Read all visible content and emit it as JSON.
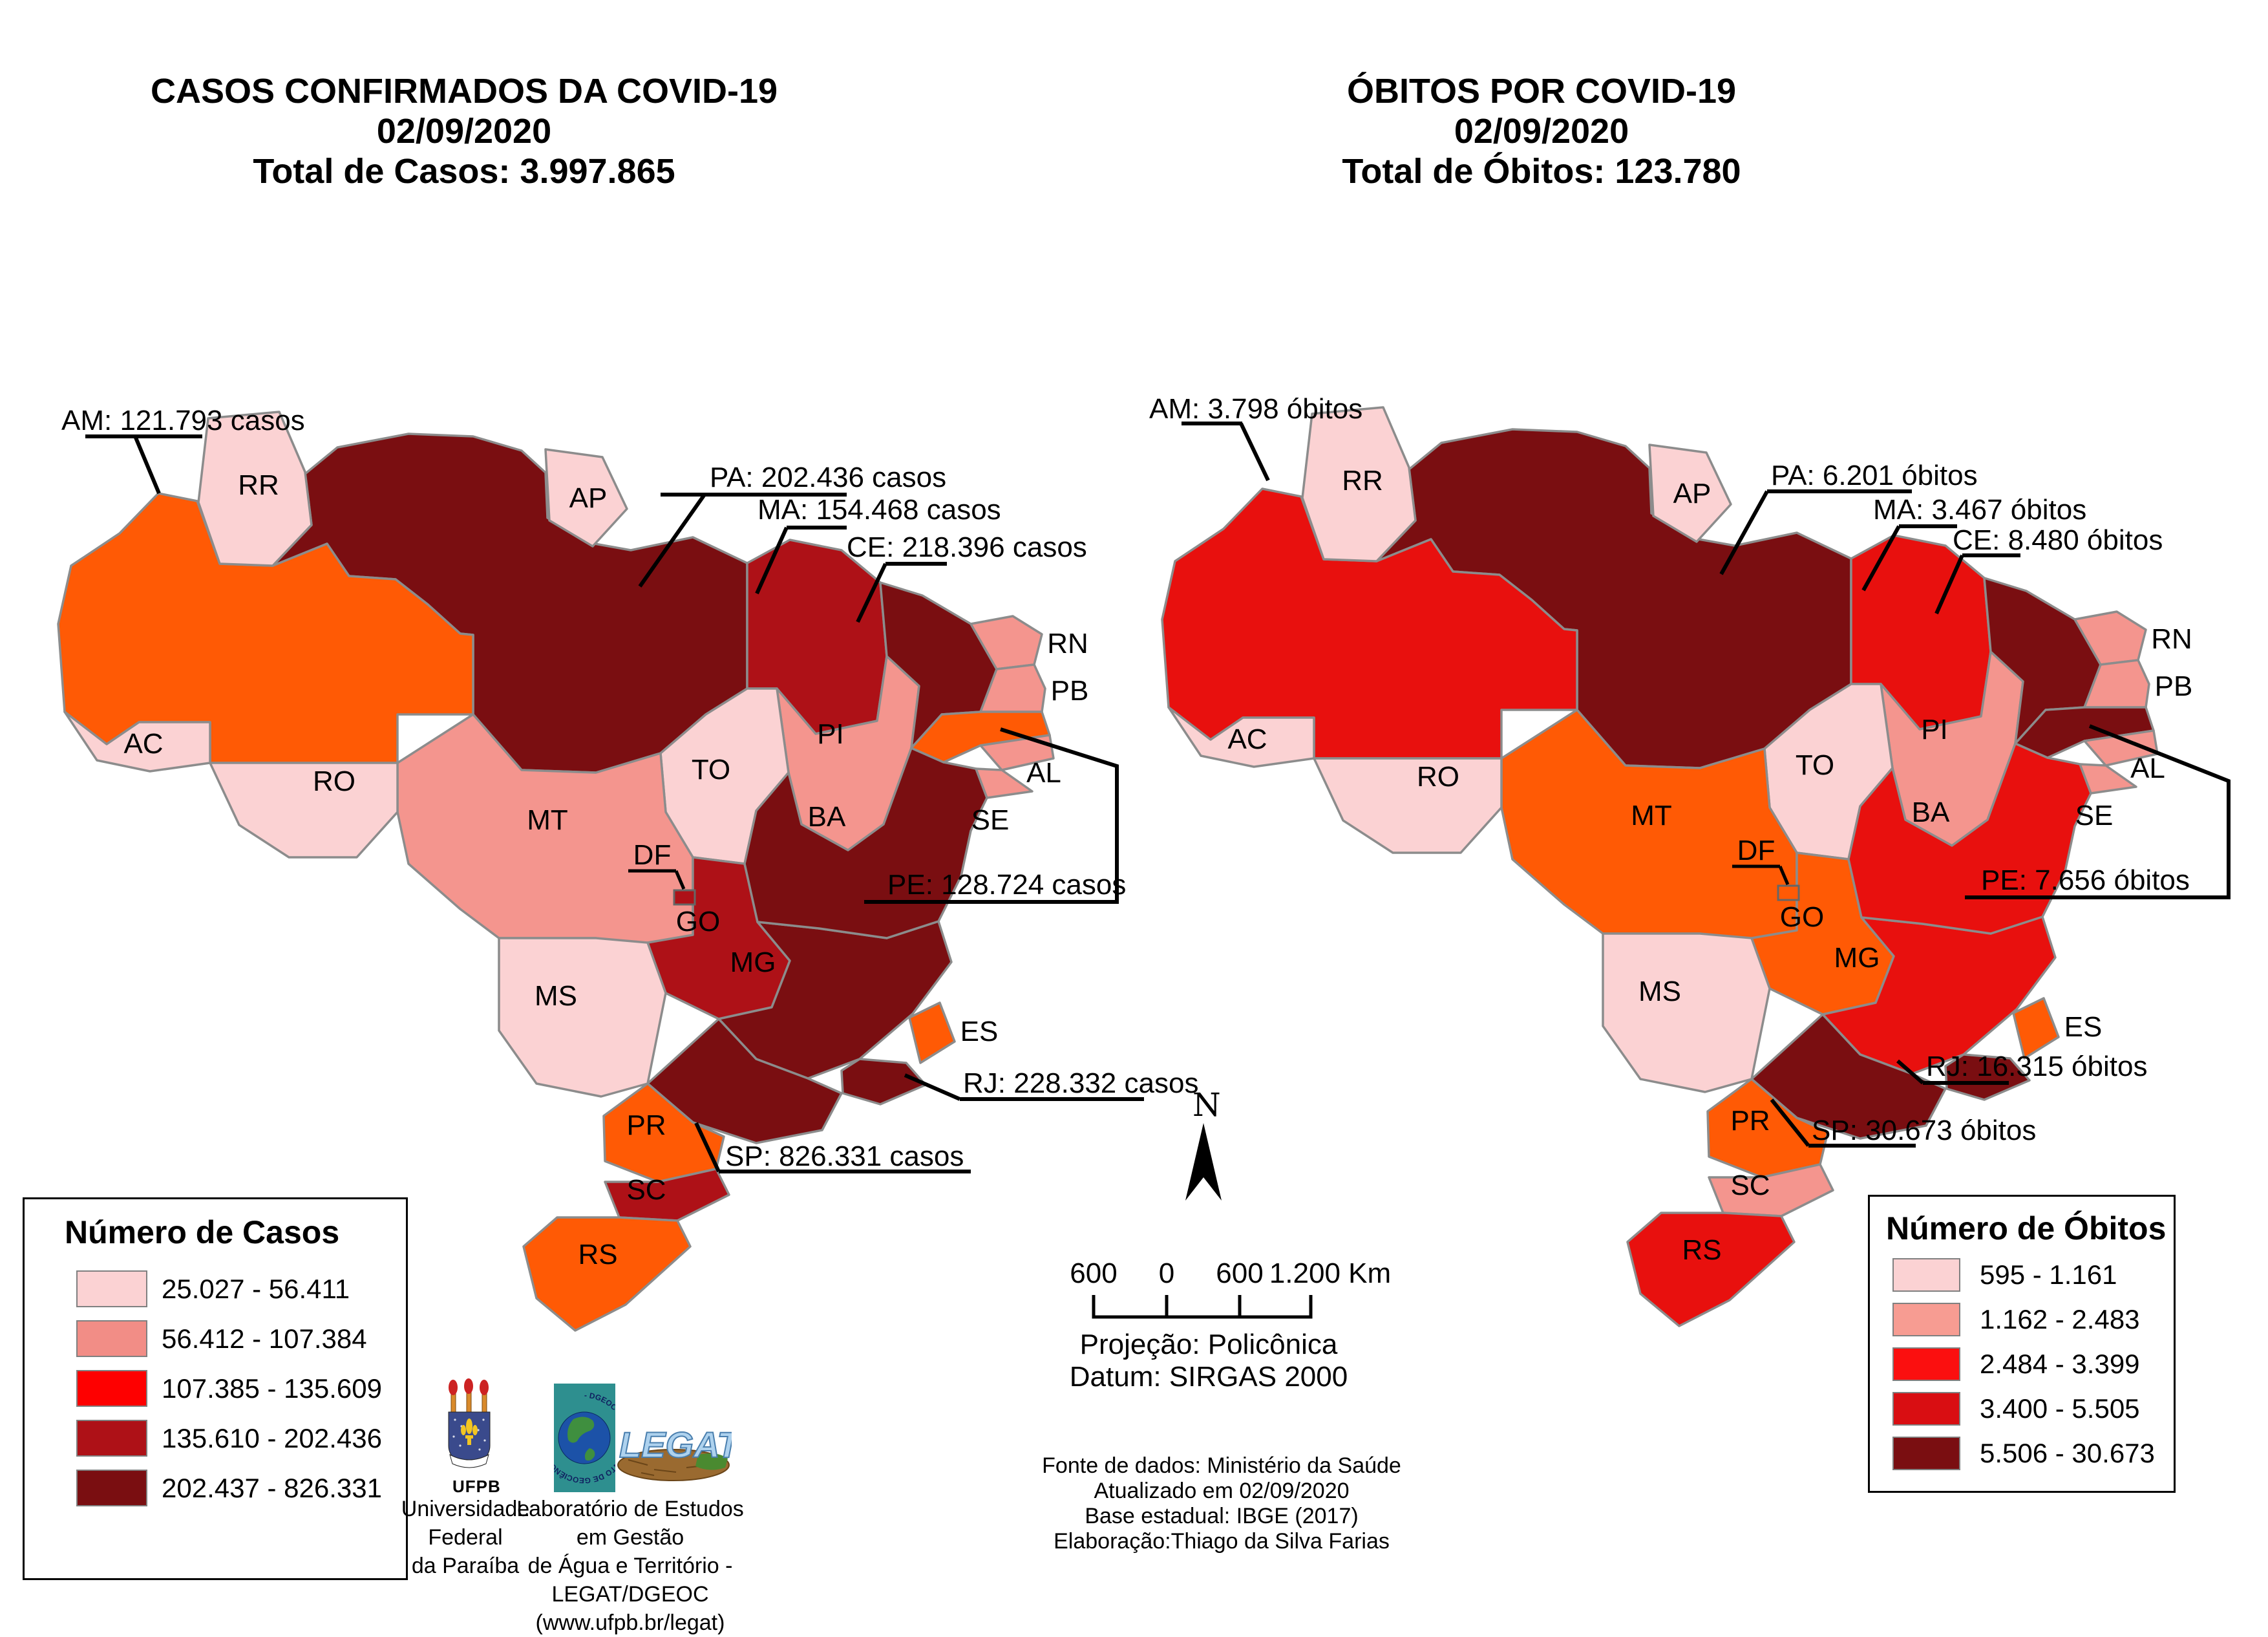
{
  "maps": [
    {
      "id": "casos",
      "title": [
        "CASOS CONFIRMADOS DA COVID-19",
        "02/09/2020",
        "Total de Casos: 3.997.865"
      ],
      "legend": {
        "title": "Número de Casos",
        "classes": [
          {
            "label": "25.027 - 56.411",
            "color": "#FBD2D3"
          },
          {
            "label": "56.412 - 107.384",
            "color": "#F28D86"
          },
          {
            "label": "107.385 - 135.609",
            "color": "#FE0000"
          },
          {
            "label": "135.610 - 202.436",
            "color": "#AE1117"
          },
          {
            "label": "202.437 - 826.331",
            "color": "#7A0E11"
          }
        ]
      },
      "map_colors": {
        "c1": "#FBD2D3",
        "c2": "#F4958E",
        "c3": "#FF5A05",
        "c4": "#AE1117",
        "c5": "#7A0E11"
      },
      "state_classes": {
        "AC": "c1",
        "RO": "c1",
        "RR": "c1",
        "AP": "c1",
        "TO": "c1",
        "MS": "c1",
        "MT": "c2",
        "PI": "c2",
        "RN": "c2",
        "PB": "c2",
        "AL": "c2",
        "SE": "c2",
        "AM": "c3",
        "PE": "c3",
        "ES": "c3",
        "PR": "c3",
        "RS": "c3",
        "MA": "c4",
        "GO": "c4",
        "DF": "c4",
        "SC": "c4",
        "PA": "c5",
        "CE": "c5",
        "BA": "c5",
        "MG": "c5",
        "SP": "c5",
        "RJ": "c5"
      },
      "callouts": [
        {
          "state": "AM",
          "text": "AM: 121.793 casos"
        },
        {
          "state": "PA",
          "text": "PA: 202.436 casos"
        },
        {
          "state": "MA",
          "text": "MA: 154.468 casos"
        },
        {
          "state": "CE",
          "text": "CE: 218.396 casos"
        },
        {
          "state": "PE",
          "text": "PE: 128.724 casos"
        },
        {
          "state": "RJ",
          "text": "RJ: 228.332 casos"
        },
        {
          "state": "SP",
          "text": "SP: 826.331 casos"
        }
      ],
      "state_labels": [
        "RR",
        "AP",
        "AC",
        "RO",
        "MT",
        "TO",
        "PI",
        "RN",
        "PB",
        "AL",
        "SE",
        "BA",
        "GO",
        "DF",
        "MG",
        "ES",
        "MS",
        "PR",
        "SC",
        "RS"
      ]
    },
    {
      "id": "obitos",
      "title": [
        "ÓBITOS POR COVID-19",
        "02/09/2020",
        "Total de Óbitos: 123.780"
      ],
      "legend": {
        "title": "Número de Óbitos",
        "classes": [
          {
            "label": "595 - 1.161",
            "color": "#FBD2D3"
          },
          {
            "label": "1.162 - 2.483",
            "color": "#F79C92"
          },
          {
            "label": "2.484 - 3.399",
            "color": "#FB0F0F"
          },
          {
            "label": "3.400 - 5.505",
            "color": "#D90E12"
          },
          {
            "label": "5.506 - 30.673",
            "color": "#7A0E11"
          }
        ]
      },
      "map_colors": {
        "c1": "#FBD2D3",
        "c2": "#F4958E",
        "c3": "#FF5A05",
        "c4": "#E8100E",
        "c5": "#7A0E11"
      },
      "state_classes": {
        "AC": "c1",
        "RO": "c1",
        "RR": "c1",
        "AP": "c1",
        "TO": "c1",
        "MS": "c1",
        "PI": "c2",
        "RN": "c2",
        "PB": "c2",
        "AL": "c2",
        "SE": "c2",
        "SC": "c2",
        "MT": "c3",
        "GO": "c3",
        "DF": "c3",
        "ES": "c3",
        "PR": "c3",
        "AM": "c4",
        "MA": "c4",
        "BA": "c4",
        "MG": "c4",
        "RS": "c4",
        "PA": "c5",
        "CE": "c5",
        "PE": "c5",
        "RJ": "c5",
        "SP": "c5"
      },
      "callouts": [
        {
          "state": "AM",
          "text": "AM: 3.798 óbitos"
        },
        {
          "state": "PA",
          "text": "PA: 6.201 óbitos"
        },
        {
          "state": "MA",
          "text": "MA: 3.467 óbitos"
        },
        {
          "state": "CE",
          "text": "CE: 8.480 óbitos"
        },
        {
          "state": "PE",
          "text": "PE: 7.656 óbitos"
        },
        {
          "state": "RJ",
          "text": "RJ: 16.315 óbitos"
        },
        {
          "state": "SP",
          "text": "SP: 30.673 óbitos"
        }
      ],
      "state_labels": [
        "RR",
        "AP",
        "AC",
        "RO",
        "MT",
        "TO",
        "PI",
        "RN",
        "PB",
        "AL",
        "SE",
        "BA",
        "GO",
        "DF",
        "MG",
        "ES",
        "MS",
        "PR",
        "SC",
        "RS"
      ]
    }
  ],
  "north_label": "N",
  "scale_bar": {
    "labels": [
      "600",
      "0",
      "600",
      "1.200 Km"
    ]
  },
  "projection": {
    "line1": "Projeção: Policônica",
    "line2": "Datum: SIRGAS 2000"
  },
  "credits": [
    "Fonte de dados: Ministério da Saúde",
    "Atualizado em 02/09/2020",
    "Base estadual: IBGE (2017)",
    "Elaboração:Thiago da Silva Farias"
  ],
  "logos": {
    "ufpb_acronym": "UFPB",
    "ufpb_caption": [
      "Universidade Federal",
      "da Paraíba"
    ],
    "dgeoc_ring_text": "- DGEOC - DEPARTAMENTO DE GEOCIÊNCIAS -",
    "legat_logo_text": "LEGAT",
    "legat_caption": [
      "Laboratório de Estudos em Gestão",
      "de Água e Território -",
      "LEGAT/DGEOC (www.ufpb.br/legat)"
    ]
  }
}
